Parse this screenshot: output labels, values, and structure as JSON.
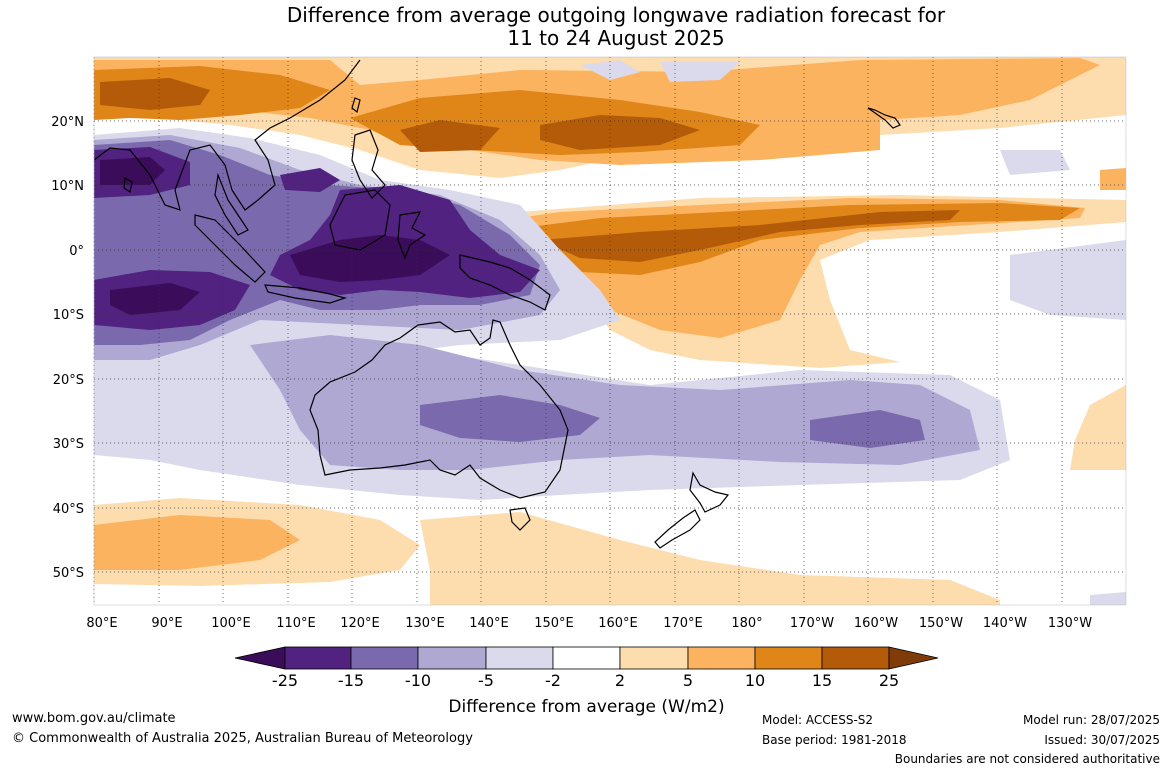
{
  "title": {
    "line1": "Difference from average outgoing longwave radiation forecast for",
    "line2": "11 to 24 August 2025"
  },
  "map": {
    "lat_labels": [
      "20°N",
      "10°N",
      "0°",
      "10°S",
      "20°S",
      "30°S",
      "40°S",
      "50°S"
    ],
    "lon_labels": [
      "80°E",
      "90°E",
      "100°E",
      "110°E",
      "120°E",
      "130°E",
      "140°E",
      "150°E",
      "160°E",
      "170°E",
      "180°",
      "170°W",
      "160°W",
      "150°W",
      "140°W",
      "130°W"
    ]
  },
  "colorbar": {
    "labels": [
      "-25",
      "-15",
      "-10",
      "-5",
      "-2",
      "2",
      "5",
      "10",
      "15",
      "25"
    ],
    "colors": [
      "#3a0c5a",
      "#51227f",
      "#7a6aad",
      "#aea8d2",
      "#dadaec",
      "#ffffff",
      "#fddcad",
      "#fbb35f",
      "#e08518",
      "#b45b0a",
      "#7f3b08"
    ],
    "title": "Difference from average (W/m2)"
  },
  "footer": {
    "url": "www.bom.gov.au/climate",
    "copyright": "© Commonwealth of Australia 2025, Australian Bureau of Meteorology",
    "model": "Model: ACCESS-S2",
    "base_period": "Base period: 1981-2018",
    "model_run": "Model run: 28/07/2025",
    "issued": "Issued: 30/07/2025",
    "disclaimer": "Boundaries are not considered authoritative"
  }
}
